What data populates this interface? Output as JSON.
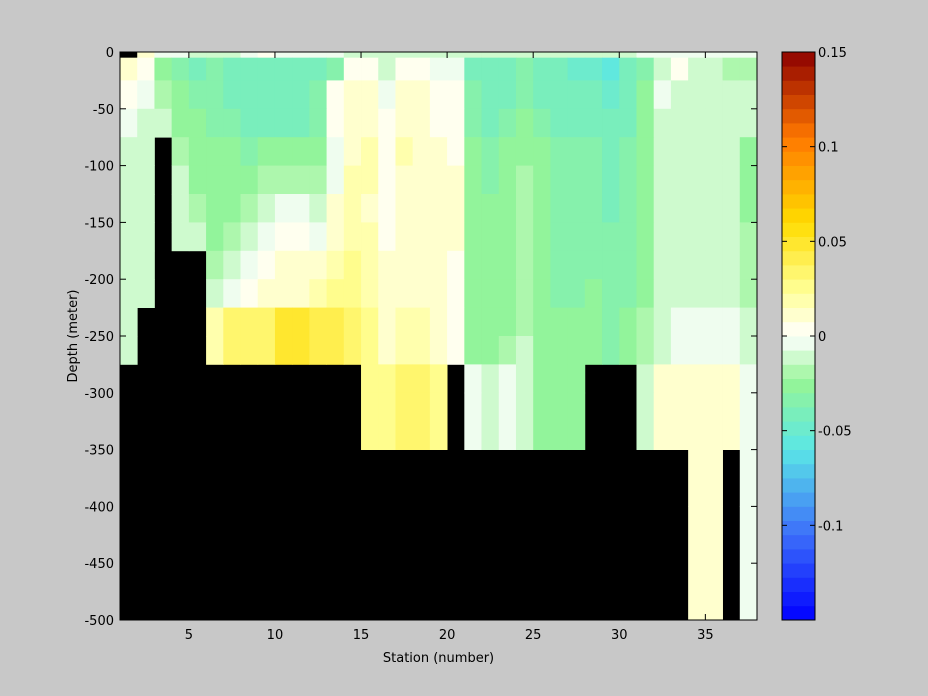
{
  "chart_data": {
    "type": "heatmap",
    "title": "",
    "xlabel": "Station (number)",
    "ylabel": "Depth (meter)",
    "xlim": [
      1,
      38
    ],
    "ylim": [
      -500,
      0
    ],
    "x_ticks": [
      5,
      10,
      15,
      20,
      25,
      30,
      35
    ],
    "x_tick_labels": [
      "5",
      "10",
      "15",
      "20",
      "25",
      "30",
      "35"
    ],
    "y_ticks": [
      0,
      -50,
      -100,
      -150,
      -200,
      -250,
      -300,
      -350,
      -400,
      -450,
      -500
    ],
    "y_tick_labels": [
      "0",
      "-50",
      "-100",
      "-150",
      "-200",
      "-250",
      "-300",
      "-350",
      "-400",
      "-450",
      "-500"
    ],
    "colorbar": {
      "range": [
        -0.15,
        0.15
      ],
      "ticks": [
        0.15,
        0.1,
        0.05,
        0,
        -0.05,
        -0.1
      ],
      "tick_labels": [
        "0.15",
        "0.1",
        "0.05",
        "0",
        "-0.05",
        "-0.1"
      ],
      "colormap": "jet-white-center",
      "levels": 40
    },
    "missing_color": "#000000",
    "depth_edges": [
      0,
      -5,
      -25,
      -50,
      -75,
      -100,
      -125,
      -150,
      -175,
      -200,
      -225,
      -250,
      -275,
      -300,
      -350,
      -400,
      -500
    ],
    "stations": [
      1,
      2,
      3,
      4,
      5,
      6,
      7,
      8,
      9,
      10,
      11,
      12,
      13,
      14,
      15,
      16,
      17,
      18,
      19,
      20,
      21,
      22,
      23,
      24,
      25,
      26,
      27,
      28,
      29,
      30,
      31,
      32,
      33,
      34,
      35,
      36,
      37
    ],
    "bottom_depth": [
      -250,
      -200,
      -75,
      -150,
      -150,
      -250,
      -250,
      -250,
      -250,
      -250,
      -250,
      -250,
      -250,
      -250,
      -300,
      -300,
      -300,
      -300,
      -300,
      -250,
      -300,
      -300,
      -300,
      -300,
      -300,
      -300,
      -300,
      -250,
      -250,
      -250,
      -300,
      -300,
      -300,
      -400,
      -400,
      -300,
      -400
    ],
    "values": [
      [
        null,
        0.01,
        -0.005,
        -0.005,
        -0.01,
        -0.01,
        -0.01,
        -0.005,
        0.005,
        -0.005,
        -0.005,
        -0.005,
        -0.005,
        -0.015,
        -0.015,
        -0.015,
        -0.015,
        -0.015,
        -0.015,
        -0.015,
        -0.01,
        -0.01,
        -0.015,
        -0.015,
        -0.015,
        -0.015,
        -0.015,
        -0.01,
        -0.01,
        -0.01,
        -0.005,
        -0.005,
        -0.005,
        -0.005,
        -0.005,
        -0.005,
        -0.005
      ],
      [
        0.01,
        0.002,
        -0.03,
        -0.035,
        -0.04,
        -0.035,
        -0.04,
        -0.04,
        -0.04,
        -0.045,
        -0.045,
        -0.04,
        -0.035,
        0.002,
        0.005,
        -0.01,
        0.002,
        0.002,
        -0.005,
        -0.005,
        -0.04,
        -0.04,
        -0.04,
        -0.035,
        -0.04,
        -0.04,
        -0.05,
        -0.05,
        -0.055,
        -0.045,
        -0.035,
        -0.01,
        0.003,
        -0.015,
        -0.015,
        -0.02,
        -0.02
      ],
      [
        0.005,
        -0.005,
        -0.02,
        -0.03,
        -0.035,
        -0.035,
        -0.04,
        -0.04,
        -0.04,
        -0.04,
        -0.04,
        -0.035,
        0.005,
        0.01,
        0.015,
        -0.005,
        0.01,
        0.01,
        0.002,
        0.002,
        -0.035,
        -0.04,
        -0.04,
        -0.035,
        -0.04,
        -0.04,
        -0.045,
        -0.045,
        -0.05,
        -0.045,
        -0.03,
        -0.005,
        -0.01,
        -0.015,
        -0.015,
        -0.015,
        -0.015
      ],
      [
        -0.005,
        -0.01,
        -0.015,
        -0.025,
        -0.03,
        -0.035,
        -0.035,
        -0.04,
        -0.04,
        -0.04,
        -0.04,
        -0.035,
        0.005,
        0.015,
        0.015,
        0.0,
        0.015,
        0.015,
        0.005,
        0.005,
        -0.035,
        -0.04,
        -0.035,
        -0.03,
        -0.035,
        -0.04,
        -0.04,
        -0.04,
        -0.045,
        -0.04,
        -0.03,
        -0.01,
        -0.01,
        -0.015,
        -0.015,
        -0.015,
        -0.015
      ],
      [
        -0.01,
        -0.015,
        null,
        -0.02,
        -0.025,
        -0.03,
        -0.03,
        -0.035,
        -0.03,
        -0.025,
        -0.03,
        -0.025,
        -0.005,
        0.015,
        0.02,
        0.002,
        0.02,
        0.015,
        0.01,
        0.005,
        -0.03,
        -0.035,
        -0.03,
        -0.025,
        -0.03,
        -0.035,
        -0.035,
        -0.035,
        -0.04,
        -0.035,
        -0.025,
        -0.01,
        -0.015,
        -0.015,
        -0.015,
        -0.015,
        -0.025
      ],
      [
        -0.01,
        -0.015,
        null,
        -0.015,
        -0.025,
        -0.03,
        -0.03,
        -0.025,
        -0.02,
        -0.02,
        -0.02,
        -0.02,
        -0.005,
        0.02,
        0.02,
        0.005,
        0.015,
        0.015,
        0.01,
        0.01,
        -0.03,
        -0.035,
        -0.03,
        -0.02,
        -0.03,
        -0.035,
        -0.035,
        -0.035,
        -0.04,
        -0.035,
        -0.025,
        -0.015,
        -0.015,
        -0.015,
        -0.015,
        -0.015,
        -0.025
      ],
      [
        -0.015,
        -0.015,
        null,
        -0.015,
        -0.02,
        -0.025,
        -0.025,
        -0.02,
        -0.01,
        -0.005,
        -0.005,
        -0.01,
        0.01,
        0.02,
        0.015,
        0.005,
        0.015,
        0.015,
        0.01,
        0.01,
        -0.025,
        -0.03,
        -0.03,
        -0.02,
        -0.03,
        -0.035,
        -0.035,
        -0.035,
        -0.04,
        -0.035,
        -0.025,
        -0.015,
        -0.015,
        -0.015,
        -0.015,
        -0.015,
        -0.025
      ],
      [
        -0.015,
        -0.015,
        null,
        -0.01,
        -0.015,
        -0.025,
        -0.02,
        -0.015,
        -0.005,
        0.0,
        0.0,
        -0.005,
        0.015,
        0.02,
        0.02,
        0.005,
        0.015,
        0.015,
        0.01,
        0.01,
        -0.025,
        -0.03,
        -0.025,
        -0.02,
        -0.025,
        -0.035,
        -0.035,
        -0.035,
        -0.035,
        -0.035,
        -0.025,
        -0.015,
        -0.015,
        -0.015,
        -0.015,
        -0.015,
        -0.02
      ],
      [
        -0.015,
        -0.015,
        null,
        null,
        null,
        -0.02,
        -0.01,
        -0.005,
        0.005,
        0.01,
        0.01,
        0.015,
        0.02,
        0.025,
        0.02,
        0.01,
        0.015,
        0.015,
        0.01,
        0.005,
        -0.025,
        -0.03,
        -0.025,
        -0.02,
        -0.025,
        -0.035,
        -0.035,
        -0.035,
        -0.035,
        -0.035,
        -0.025,
        -0.015,
        -0.015,
        -0.015,
        -0.015,
        -0.015,
        -0.02
      ],
      [
        -0.015,
        -0.015,
        null,
        null,
        null,
        -0.015,
        -0.005,
        0.005,
        0.01,
        0.015,
        0.015,
        0.02,
        0.025,
        0.025,
        0.02,
        0.01,
        0.015,
        0.015,
        0.01,
        0.005,
        -0.025,
        -0.03,
        -0.025,
        -0.02,
        -0.025,
        -0.035,
        -0.035,
        -0.03,
        -0.035,
        -0.035,
        -0.025,
        -0.015,
        -0.015,
        -0.015,
        -0.015,
        -0.015,
        -0.02
      ],
      [
        -0.015,
        null,
        null,
        null,
        null,
        0.02,
        0.03,
        0.03,
        0.035,
        0.045,
        0.045,
        0.04,
        0.04,
        0.035,
        0.025,
        0.015,
        0.02,
        0.02,
        0.015,
        0.0,
        -0.025,
        -0.03,
        -0.025,
        -0.02,
        -0.025,
        -0.03,
        -0.03,
        -0.03,
        -0.035,
        -0.03,
        -0.02,
        -0.01,
        -0.005,
        -0.005,
        -0.005,
        -0.005,
        -0.015
      ],
      [
        -0.01,
        null,
        null,
        null,
        null,
        0.02,
        0.03,
        0.03,
        0.035,
        0.045,
        0.045,
        0.04,
        0.04,
        0.035,
        0.025,
        0.015,
        0.02,
        0.02,
        0.015,
        0.0,
        -0.025,
        -0.03,
        -0.02,
        -0.015,
        -0.025,
        -0.03,
        -0.03,
        -0.03,
        -0.035,
        -0.03,
        -0.02,
        -0.01,
        -0.005,
        -0.005,
        -0.005,
        -0.005,
        -0.01
      ],
      [
        null,
        null,
        null,
        null,
        null,
        null,
        null,
        null,
        null,
        null,
        null,
        null,
        null,
        null,
        0.025,
        0.025,
        0.03,
        0.03,
        0.025,
        null,
        -0.005,
        -0.01,
        -0.005,
        -0.01,
        -0.03,
        -0.03,
        -0.03,
        null,
        null,
        null,
        -0.01,
        0.01,
        0.01,
        0.01,
        0.01,
        0.015,
        -0.005
      ],
      [
        null,
        null,
        null,
        null,
        null,
        null,
        null,
        null,
        null,
        null,
        null,
        null,
        null,
        null,
        0.025,
        0.025,
        0.03,
        0.03,
        0.025,
        null,
        -0.005,
        -0.01,
        -0.005,
        -0.01,
        -0.03,
        -0.03,
        -0.03,
        null,
        null,
        null,
        -0.01,
        0.01,
        0.01,
        0.01,
        0.01,
        0.015,
        -0.005
      ],
      [
        null,
        null,
        null,
        null,
        null,
        null,
        null,
        null,
        null,
        null,
        null,
        null,
        null,
        null,
        null,
        null,
        null,
        null,
        null,
        null,
        null,
        null,
        null,
        null,
        null,
        null,
        null,
        null,
        null,
        null,
        null,
        null,
        null,
        0.015,
        0.015,
        null,
        -0.005
      ],
      [
        null,
        null,
        null,
        null,
        null,
        null,
        null,
        null,
        null,
        null,
        null,
        null,
        null,
        null,
        null,
        null,
        null,
        null,
        null,
        null,
        null,
        null,
        null,
        null,
        null,
        null,
        null,
        null,
        null,
        null,
        null,
        null,
        null,
        0.015,
        0.015,
        null,
        -0.005
      ]
    ]
  }
}
